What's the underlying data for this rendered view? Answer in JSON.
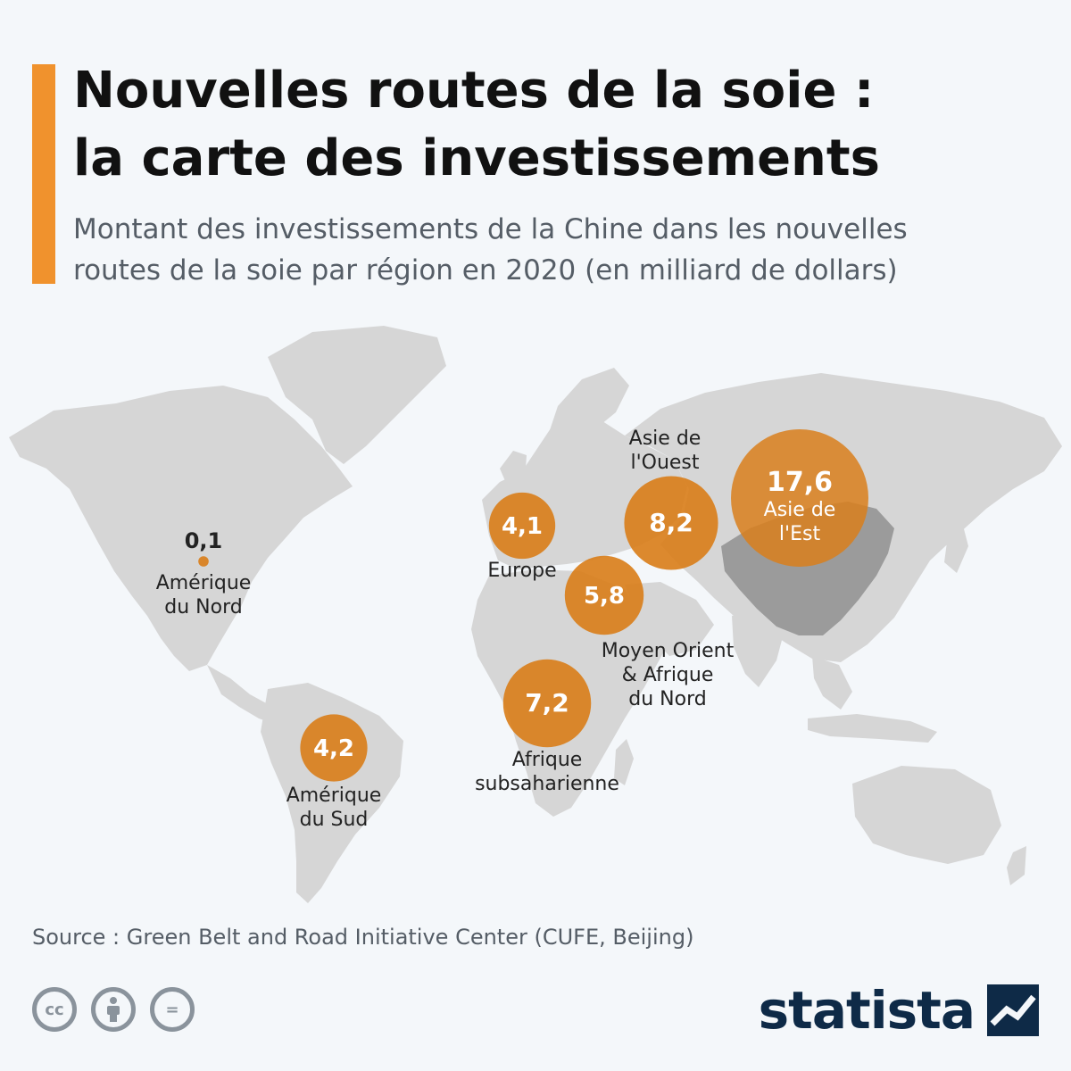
{
  "header": {
    "title_line1": "Nouvelles routes de la soie :",
    "title_line2": "la carte des investissements",
    "subtitle_line1": "Montant des investissements de la Chine dans les nouvelles",
    "subtitle_line2": "routes de la soie par région en 2020 (en milliard de dollars)"
  },
  "colors": {
    "accent": "#f0922d",
    "bubble": "#d97f1c",
    "land": "#d6d6d6",
    "china": "#9b9b9b",
    "background": "#f4f7fa"
  },
  "chart_data": {
    "type": "bubble-map",
    "unit": "milliard de dollars",
    "regions": [
      {
        "id": "north-america",
        "value": 0.1,
        "value_label": "0,1",
        "label_lines": [
          "Amérique",
          "du Nord"
        ]
      },
      {
        "id": "europe",
        "value": 4.1,
        "value_label": "4,1",
        "label_lines": [
          "Europe"
        ]
      },
      {
        "id": "west-asia",
        "value": 8.2,
        "value_label": "8,2",
        "label_lines": [
          "Asie de",
          "l'Ouest"
        ]
      },
      {
        "id": "east-asia",
        "value": 17.6,
        "value_label": "17,6",
        "label_lines": [
          "Asie de",
          "l'Est"
        ]
      },
      {
        "id": "mena",
        "value": 5.8,
        "value_label": "5,8",
        "label_lines": [
          "Moyen Orient",
          "& Afrique",
          "du Nord"
        ]
      },
      {
        "id": "sub-saharan-africa",
        "value": 7.2,
        "value_label": "7,2",
        "label_lines": [
          "Afrique",
          "subsaharienne"
        ]
      },
      {
        "id": "south-america",
        "value": 4.2,
        "value_label": "4,2",
        "label_lines": [
          "Amérique",
          "du Sud"
        ]
      }
    ]
  },
  "footer": {
    "source": "Source : Green Belt and Road Initiative Center (CUFE, Beijing)",
    "license_icons": [
      "cc-icon",
      "by-icon",
      "nd-icon"
    ],
    "cc_text": "cc",
    "nd_text": "=",
    "logo_text": "statista"
  }
}
